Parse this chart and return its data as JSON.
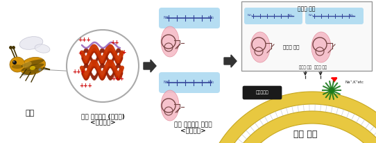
{
  "bg_color": "#ffffff",
  "labels": {
    "bee": "꿀벌",
    "peptide_line1": "항균 펩타이드 (멜리틴)",
    "peptide_line2": "<양친매성>",
    "mimic_line1": "항균 펩타이드 모사체",
    "mimic_line2": "<양친매성>",
    "action": "항균 작용",
    "hydrophilic": "친수성 부분",
    "hydrophobic": "소수성 부분",
    "cell_pass": "세포막 투과",
    "cell_destroy": "세포막 파괴",
    "ion": "Na⁺,K⁺etc",
    "bacteria": "다제내성균"
  },
  "plus_color": "#cc0000",
  "blue_highlight": "#a8d8f0",
  "pink_highlight": "#f5b8c4",
  "helix_color1": "#cc3300",
  "helix_color2": "#8b1a00",
  "purple": "#9966bb",
  "circle_color": "#aaaaaa",
  "green_color": "#1a7a1a",
  "yellow_outer": "#e8c840",
  "yellow_inner": "#f0d860",
  "membrane_lines": "#888888",
  "arrow_color": "#222222",
  "box_border": "#999999"
}
